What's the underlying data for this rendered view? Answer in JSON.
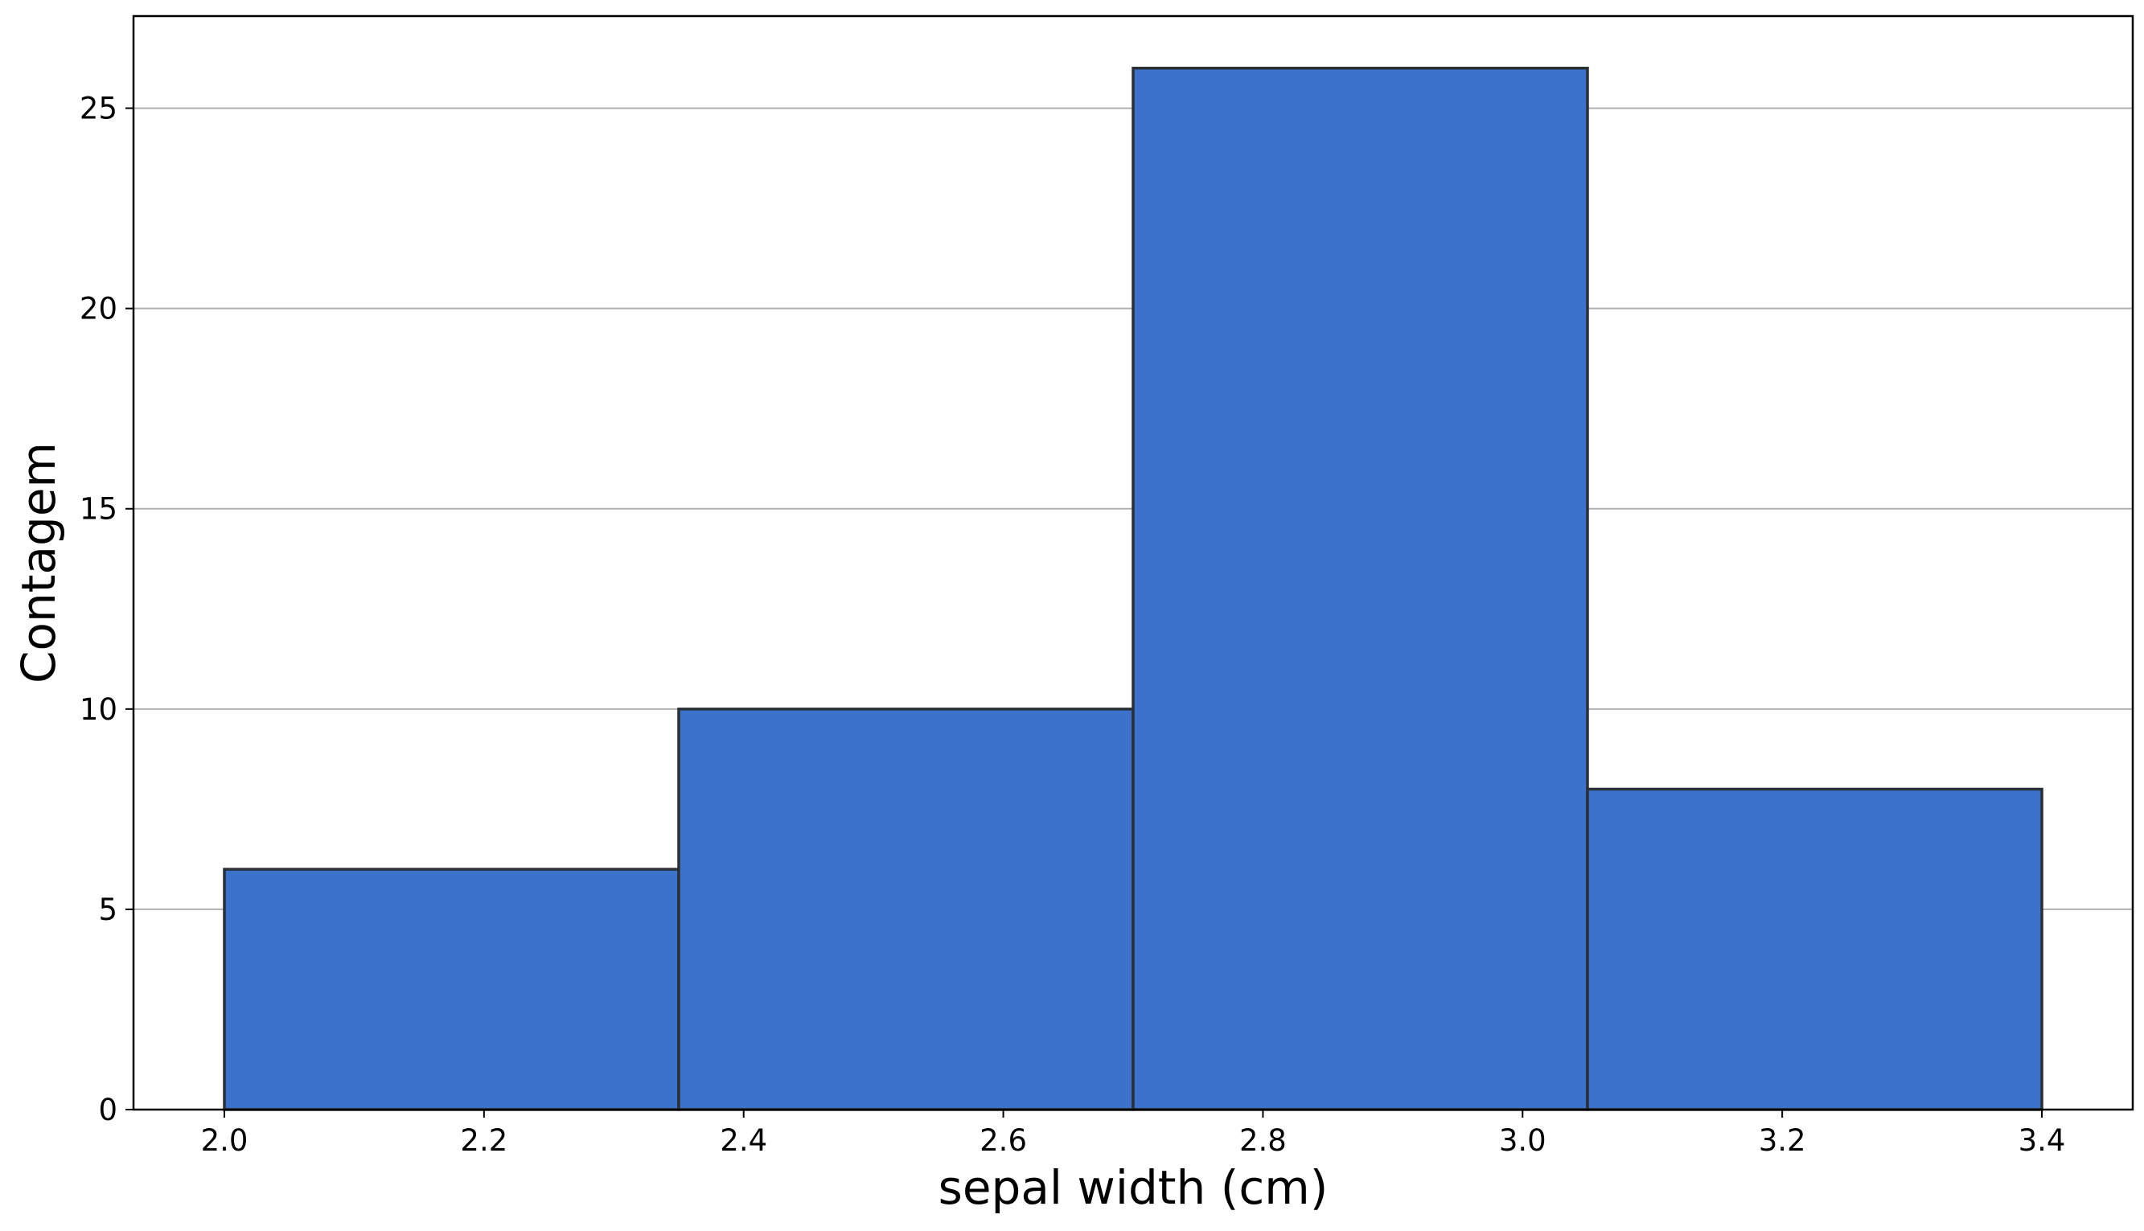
{
  "chart_data": {
    "type": "histogram",
    "xlabel": "sepal width (cm)",
    "ylabel": "Contagem",
    "bins": [
      {
        "x0": 2.0,
        "x1": 2.35,
        "count": 6
      },
      {
        "x0": 2.35,
        "x1": 2.7,
        "count": 10
      },
      {
        "x0": 2.7,
        "x1": 3.05,
        "count": 26
      },
      {
        "x0": 3.05,
        "x1": 3.4,
        "count": 8
      }
    ],
    "xlim": [
      1.93,
      3.47
    ],
    "ylim": [
      0,
      27.3
    ],
    "xticks": [
      2.0,
      2.2,
      2.4,
      2.6,
      2.8,
      3.0,
      3.2,
      3.4
    ],
    "xtick_labels": [
      "2.0",
      "2.2",
      "2.4",
      "2.6",
      "2.8",
      "3.0",
      "3.2",
      "3.4"
    ],
    "yticks": [
      0,
      5,
      10,
      15,
      20,
      25
    ],
    "ytick_labels": [
      "0",
      "5",
      "10",
      "15",
      "20",
      "25"
    ],
    "grid": {
      "y": true,
      "x": false
    },
    "colors": {
      "bar_fill": "#3a72cc",
      "bar_edge": "#2b2f36",
      "grid": "#b0b0b0",
      "axis": "#000000"
    }
  }
}
